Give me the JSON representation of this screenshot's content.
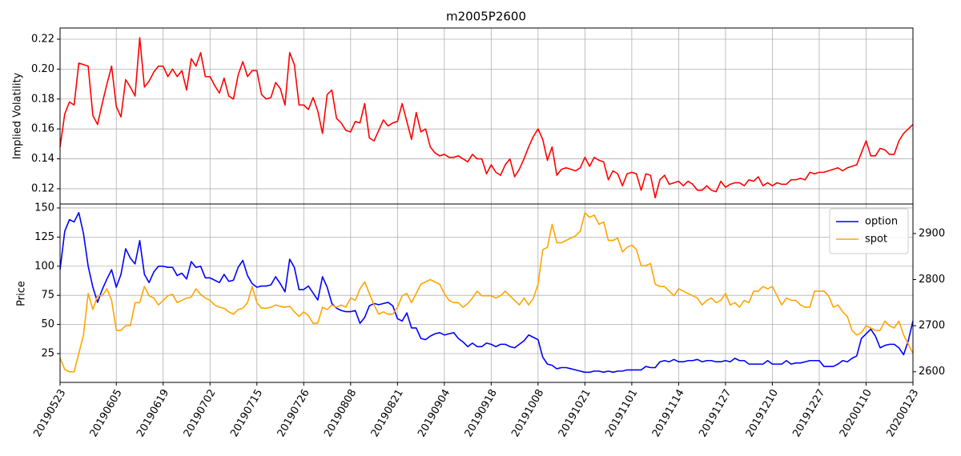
{
  "chart_data": [
    {
      "type": "line",
      "title": "m2005P2600",
      "ylabel": "Implied Volatility",
      "ylim": [
        0.1098,
        0.2275
      ],
      "yticks": [
        0.12,
        0.14,
        0.16,
        0.18,
        {
          "value": 0.2,
          "label": "0.20"
        },
        0.22
      ],
      "grid": true,
      "series": [
        {
          "name": null,
          "color": "#ff0000",
          "values": [
            0.148,
            0.17,
            0.178,
            0.176,
            0.204,
            0.203,
            0.202,
            0.169,
            0.163,
            0.177,
            0.19,
            0.202,
            0.175,
            0.168,
            0.193,
            0.188,
            0.182,
            0.221,
            0.188,
            0.192,
            0.198,
            0.202,
            0.202,
            0.195,
            0.2,
            0.195,
            0.199,
            0.186,
            0.207,
            0.202,
            0.211,
            0.195,
            0.195,
            0.189,
            0.184,
            0.194,
            0.182,
            0.18,
            0.196,
            0.205,
            0.195,
            0.199,
            0.199,
            0.183,
            0.18,
            0.181,
            0.191,
            0.187,
            0.176,
            0.211,
            0.203,
            0.176,
            0.176,
            0.173,
            0.181,
            0.172,
            0.157,
            0.183,
            0.186,
            0.167,
            0.164,
            0.159,
            0.158,
            0.165,
            0.164,
            0.177,
            0.154,
            0.152,
            0.159,
            0.166,
            0.162,
            0.164,
            0.165,
            0.177,
            0.165,
            0.153,
            0.171,
            0.158,
            0.16,
            0.148,
            0.144,
            0.142,
            0.143,
            0.141,
            0.141,
            0.142,
            0.14,
            0.138,
            0.143,
            0.14,
            0.14,
            0.13,
            0.136,
            0.131,
            0.129,
            0.136,
            0.14,
            0.128,
            0.133,
            0.14,
            0.148,
            0.155,
            0.16,
            0.153,
            0.139,
            0.148,
            0.129,
            0.133,
            0.134,
            0.133,
            0.132,
            0.134,
            0.141,
            0.135,
            0.141,
            0.139,
            0.138,
            0.126,
            0.132,
            0.13,
            0.122,
            0.13,
            0.131,
            0.13,
            0.119,
            0.13,
            0.129,
            0.114,
            0.126,
            0.129,
            0.123,
            0.124,
            0.125,
            0.122,
            0.125,
            0.123,
            0.119,
            0.119,
            0.122,
            0.119,
            0.118,
            0.125,
            0.121,
            0.123,
            0.124,
            0.124,
            0.122,
            0.126,
            0.125,
            0.128,
            0.122,
            0.124,
            0.122,
            0.124,
            0.123,
            0.123,
            0.126,
            0.126,
            0.127,
            0.126,
            0.131,
            0.13,
            0.131,
            0.131,
            0.132,
            0.133,
            0.134,
            0.132,
            0.134,
            0.135,
            0.136,
            0.144,
            0.152,
            0.142,
            0.142,
            0.147,
            0.146,
            0.143,
            0.143,
            0.152,
            0.157,
            0.16,
            0.163
          ]
        }
      ]
    },
    {
      "type": "line",
      "ylabel": "Price",
      "categories": [
        "20190523",
        null,
        null,
        null,
        null,
        null,
        null,
        null,
        null,
        null,
        null,
        null,
        "20190605",
        null,
        null,
        null,
        null,
        null,
        null,
        null,
        null,
        null,
        "20190619",
        null,
        null,
        null,
        null,
        null,
        null,
        null,
        null,
        null,
        "20190702",
        null,
        null,
        null,
        null,
        null,
        null,
        null,
        null,
        null,
        "20190715",
        null,
        null,
        null,
        null,
        null,
        null,
        null,
        null,
        null,
        "20190726",
        null,
        null,
        null,
        null,
        null,
        null,
        null,
        null,
        null,
        "20190808",
        null,
        null,
        null,
        null,
        null,
        null,
        null,
        null,
        null,
        "20190821",
        null,
        null,
        null,
        null,
        null,
        null,
        null,
        null,
        null,
        "20190904",
        null,
        null,
        null,
        null,
        null,
        null,
        null,
        null,
        null,
        "20190918",
        null,
        null,
        null,
        null,
        null,
        null,
        null,
        null,
        null,
        "20191008",
        null,
        null,
        null,
        null,
        null,
        null,
        null,
        null,
        null,
        "20191021",
        null,
        null,
        null,
        null,
        null,
        null,
        null,
        null,
        null,
        "20191101",
        null,
        null,
        null,
        null,
        null,
        null,
        null,
        null,
        null,
        "20191114",
        null,
        null,
        null,
        null,
        null,
        null,
        null,
        null,
        null,
        "20191127",
        null,
        null,
        null,
        null,
        null,
        null,
        null,
        null,
        null,
        "20191210",
        null,
        null,
        null,
        null,
        null,
        null,
        null,
        null,
        null,
        "20191227",
        null,
        null,
        null,
        null,
        null,
        null,
        null,
        null,
        null,
        "20200110",
        null,
        null,
        null,
        null,
        null,
        null,
        null,
        null,
        null,
        "20200123"
      ],
      "ylim": [
        0.3,
        153.4
      ],
      "yticks": [
        25,
        50,
        75,
        100,
        125,
        150
      ],
      "y2lim": [
        2577,
        2964
      ],
      "y2ticks": [
        2600,
        2700,
        2800,
        2900
      ],
      "grid": true,
      "legend": "upper right",
      "series": [
        {
          "name": "option",
          "color": "#0000ff",
          "values": [
            97,
            130,
            140,
            138,
            146,
            128,
            100,
            82,
            69,
            80,
            89,
            97,
            82,
            93,
            115,
            107,
            102,
            122,
            93,
            86,
            95,
            100,
            100,
            99,
            99,
            92,
            94,
            89,
            104,
            99,
            100,
            90,
            90,
            88,
            86,
            93,
            87,
            88,
            99,
            105,
            92,
            85,
            82,
            83,
            83,
            84,
            91,
            85,
            78,
            106,
            99,
            80,
            80,
            83,
            77,
            71,
            91,
            82,
            68,
            64,
            62,
            61,
            61,
            62,
            51,
            56,
            66,
            68,
            67,
            68,
            69,
            66,
            55,
            53,
            60,
            47,
            47,
            38,
            37,
            40,
            42,
            43,
            41,
            42,
            43,
            38,
            35,
            31,
            34,
            31,
            31,
            34,
            33,
            31,
            33,
            33,
            31,
            30,
            33,
            36,
            41,
            39,
            37,
            22,
            16,
            15,
            12,
            13,
            13,
            12,
            11,
            10,
            9,
            9,
            10,
            10,
            9,
            10,
            9,
            10,
            10,
            11,
            11,
            11,
            11,
            14,
            13,
            13,
            18,
            19,
            18,
            20,
            18,
            18,
            19,
            19,
            20,
            18,
            19,
            19,
            18,
            18,
            19,
            18,
            21,
            19,
            19,
            16,
            16,
            16,
            16,
            19,
            16,
            16,
            16,
            19,
            16,
            17,
            17,
            18,
            19,
            19,
            19,
            14,
            14,
            14,
            16,
            19,
            18,
            21,
            23,
            38,
            42,
            46,
            40,
            30,
            32,
            33,
            33,
            30,
            24,
            36,
            53
          ]
        },
        {
          "name": "spot",
          "color": "#ffa500",
          "axis": "y2",
          "values": [
            2630,
            2605,
            2600,
            2600,
            2640,
            2680,
            2770,
            2735,
            2765,
            2765,
            2780,
            2755,
            2690,
            2690,
            2700,
            2700,
            2750,
            2750,
            2785,
            2765,
            2760,
            2745,
            2755,
            2765,
            2768,
            2750,
            2755,
            2760,
            2762,
            2780,
            2768,
            2760,
            2755,
            2745,
            2740,
            2738,
            2730,
            2725,
            2735,
            2738,
            2750,
            2785,
            2750,
            2738,
            2738,
            2740,
            2745,
            2742,
            2740,
            2742,
            2730,
            2720,
            2730,
            2722,
            2705,
            2706,
            2740,
            2735,
            2745,
            2740,
            2745,
            2740,
            2760,
            2755,
            2780,
            2795,
            2770,
            2745,
            2725,
            2730,
            2725,
            2725,
            2740,
            2765,
            2770,
            2750,
            2770,
            2790,
            2795,
            2800,
            2795,
            2790,
            2770,
            2755,
            2750,
            2750,
            2740,
            2748,
            2760,
            2775,
            2765,
            2765,
            2765,
            2760,
            2765,
            2775,
            2765,
            2755,
            2745,
            2760,
            2745,
            2760,
            2790,
            2865,
            2870,
            2920,
            2880,
            2880,
            2885,
            2890,
            2895,
            2905,
            2945,
            2935,
            2940,
            2920,
            2925,
            2885,
            2885,
            2890,
            2860,
            2870,
            2875,
            2865,
            2830,
            2830,
            2835,
            2790,
            2785,
            2785,
            2775,
            2765,
            2780,
            2775,
            2770,
            2765,
            2760,
            2745,
            2755,
            2760,
            2750,
            2755,
            2770,
            2745,
            2750,
            2740,
            2755,
            2750,
            2775,
            2775,
            2785,
            2780,
            2785,
            2765,
            2745,
            2760,
            2755,
            2755,
            2745,
            2740,
            2740,
            2775,
            2775,
            2775,
            2765,
            2740,
            2745,
            2730,
            2720,
            2690,
            2680,
            2685,
            2700,
            2695,
            2690,
            2690,
            2710,
            2700,
            2695,
            2710,
            2680,
            2660,
            2640
          ]
        }
      ]
    }
  ]
}
